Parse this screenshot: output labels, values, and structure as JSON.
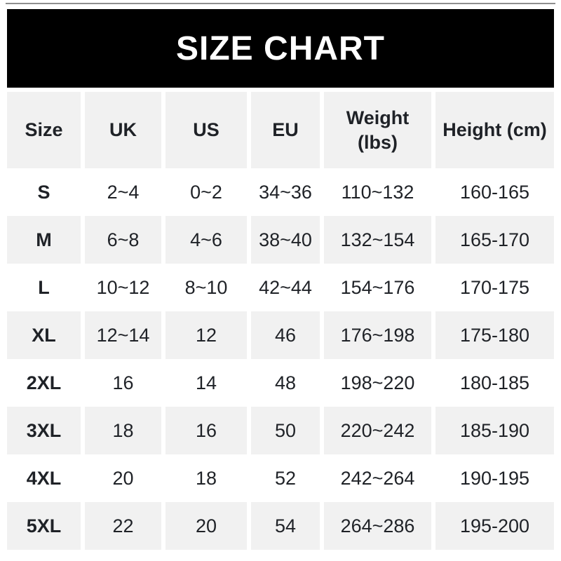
{
  "header": {
    "title": "SIZE CHART"
  },
  "table": {
    "columns": [
      {
        "key": "size",
        "label": "Size"
      },
      {
        "key": "uk",
        "label": "UK"
      },
      {
        "key": "us",
        "label": "US"
      },
      {
        "key": "eu",
        "label": "EU"
      },
      {
        "key": "weight",
        "label": "Weight (lbs)"
      },
      {
        "key": "height",
        "label": "Height (cm)"
      }
    ],
    "rows": [
      {
        "size": "S",
        "uk": "2~4",
        "us": "0~2",
        "eu": "34~36",
        "weight": "110~132",
        "height": "160-165"
      },
      {
        "size": "M",
        "uk": "6~8",
        "us": "4~6",
        "eu": "38~40",
        "weight": "132~154",
        "height": "165-170"
      },
      {
        "size": "L",
        "uk": "10~12",
        "us": "8~10",
        "eu": "42~44",
        "weight": "154~176",
        "height": "170-175"
      },
      {
        "size": "XL",
        "uk": "12~14",
        "us": "12",
        "eu": "46",
        "weight": "176~198",
        "height": "175-180"
      },
      {
        "size": "2XL",
        "uk": "16",
        "us": "14",
        "eu": "48",
        "weight": "198~220",
        "height": "180-185"
      },
      {
        "size": "3XL",
        "uk": "18",
        "us": "16",
        "eu": "50",
        "weight": "220~242",
        "height": "185-190"
      },
      {
        "size": "4XL",
        "uk": "20",
        "us": "18",
        "eu": "52",
        "weight": "242~264",
        "height": "190-195"
      },
      {
        "size": "5XL",
        "uk": "22",
        "us": "20",
        "eu": "54",
        "weight": "264~286",
        "height": "195-200"
      }
    ]
  },
  "colors": {
    "page_bg": "#ffffff",
    "banner_bg": "#000000",
    "banner_text": "#ffffff",
    "row_alt_bg": "#f1f1f1",
    "text": "#1f2227",
    "divider": "#8e8e8e"
  }
}
